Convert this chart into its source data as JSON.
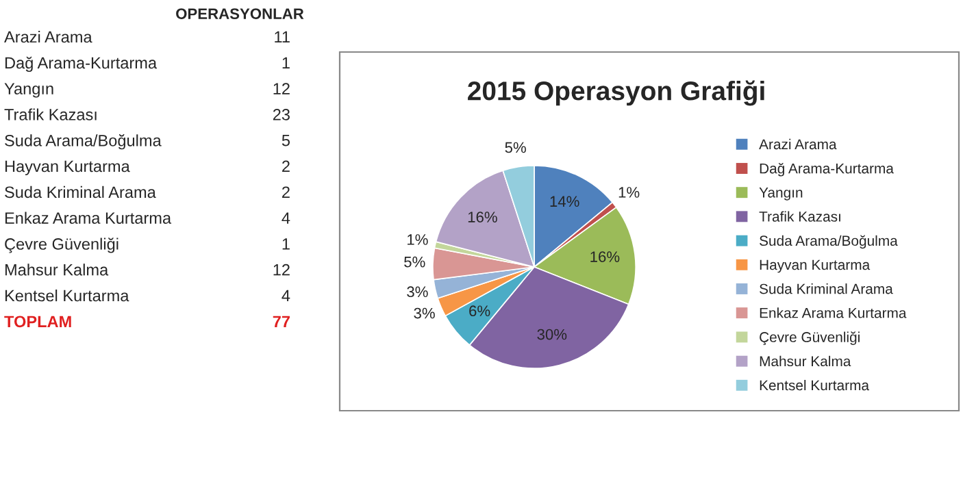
{
  "chart_data": {
    "type": "pie",
    "title": "2015 Operasyon Grafiği",
    "categories": [
      "Arazi Arama",
      "Dağ Arama-Kurtarma",
      "Yangın",
      "Trafik Kazası",
      "Suda Arama/Boğulma",
      "Hayvan Kurtarma",
      "Suda Kriminal Arama",
      "Enkaz Arama Kurtarma",
      "Çevre Güvenliği",
      "Mahsur Kalma",
      "Kentsel Kurtarma"
    ],
    "values": [
      14,
      1,
      16,
      30,
      6,
      3,
      3,
      5,
      1,
      16,
      5
    ],
    "value_labels": [
      "14%",
      "1%",
      "16%",
      "30%",
      "6%",
      "3%",
      "3%",
      "5%",
      "1%",
      "16%",
      "5%"
    ],
    "colors": [
      "#4f81bd",
      "#c0504d",
      "#9bbb59",
      "#8064a2",
      "#4bacc6",
      "#f79646",
      "#95b3d7",
      "#d99694",
      "#c3d69b",
      "#b3a2c7",
      "#93cddd"
    ],
    "annotations": [
      "OPERASYONLAR",
      "11",
      "1",
      "12",
      "23",
      "5",
      "2",
      "2",
      "4",
      "1",
      "12",
      "4",
      "TOPLAM",
      "77"
    ],
    "legend": "right"
  }
}
